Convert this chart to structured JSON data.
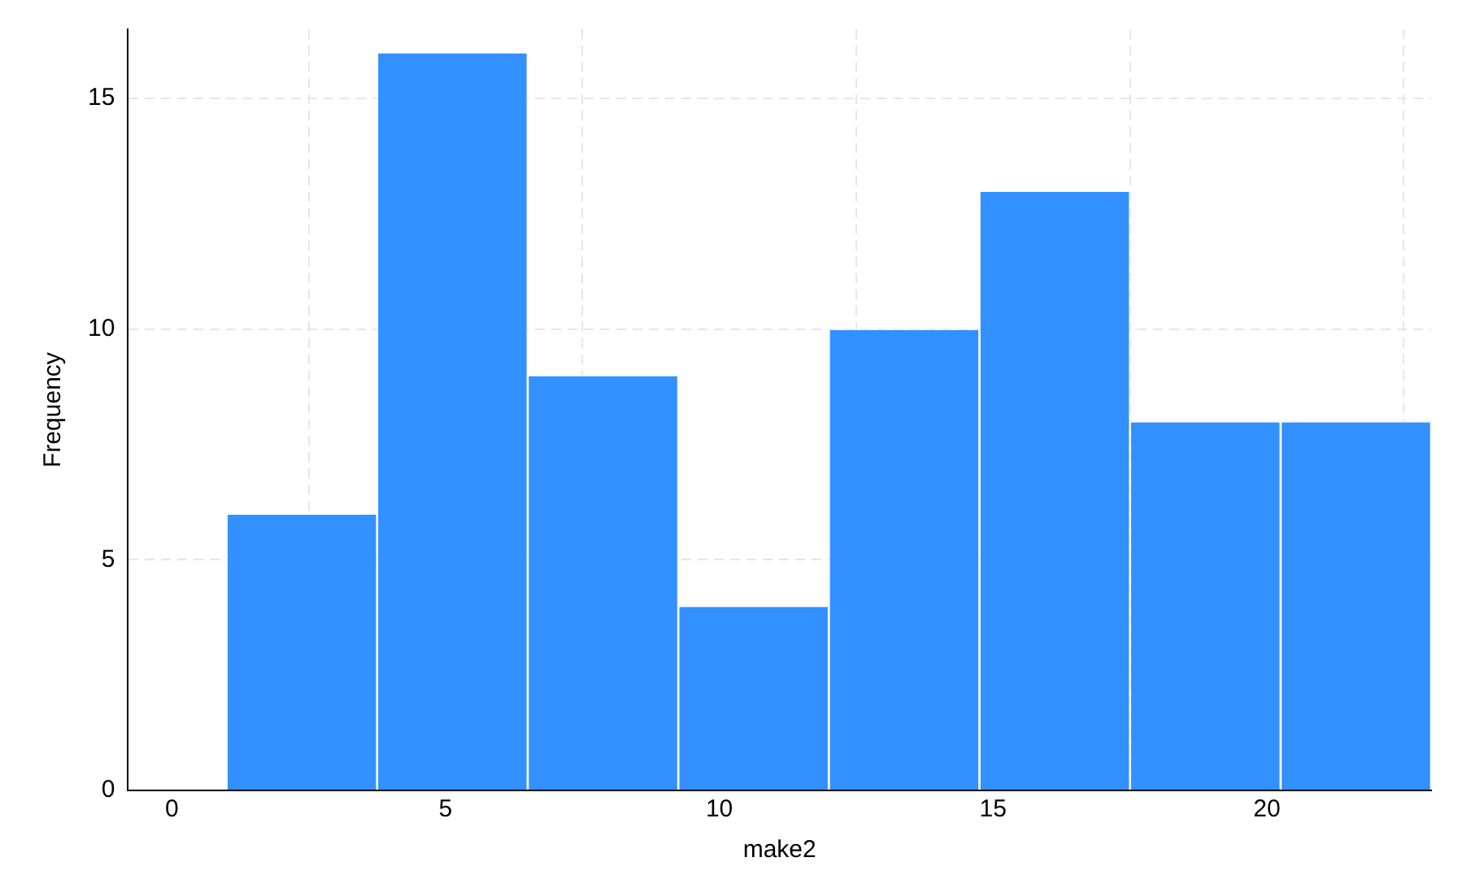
{
  "chart_data": {
    "type": "histogram",
    "xlabel": "make2",
    "ylabel": "Frequency",
    "bins": [
      1,
      3.75,
      6.5,
      9.25,
      12,
      14.75,
      17.5,
      20.25,
      23
    ],
    "values": [
      6,
      16,
      9,
      4,
      10,
      13,
      8,
      8
    ],
    "color": "#3390ff",
    "xlim": [
      -0.8,
      23
    ],
    "xticks": [
      0,
      5,
      10,
      15,
      20
    ],
    "ylim": [
      0,
      16.5
    ],
    "yticks": [
      0,
      5,
      10,
      15
    ],
    "grid": true
  }
}
